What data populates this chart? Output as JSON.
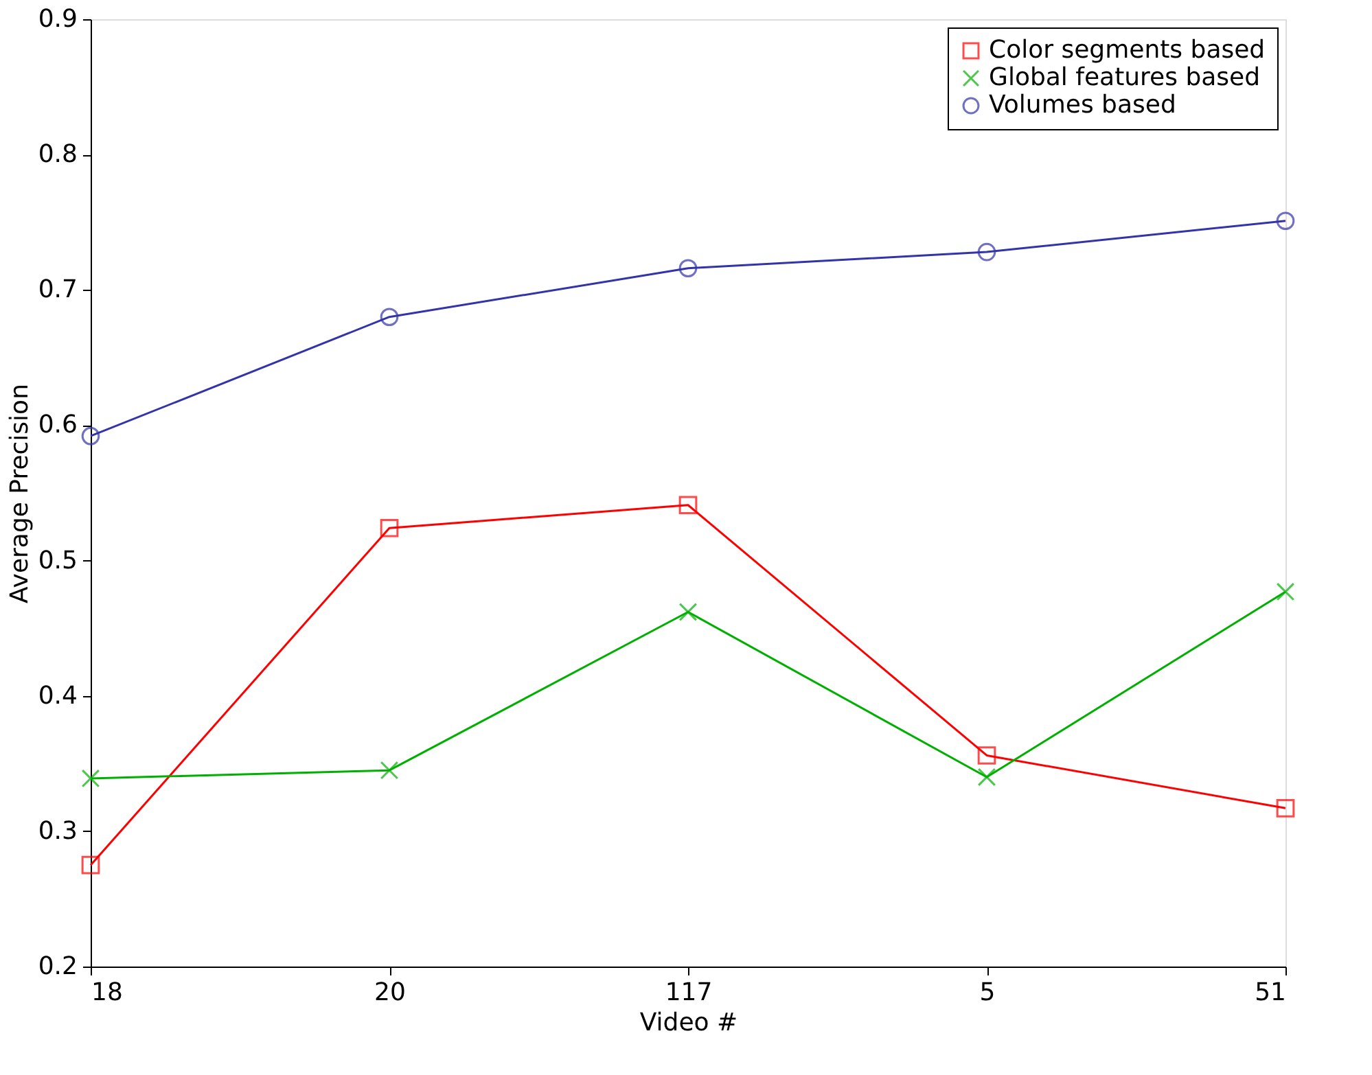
{
  "chart_data": {
    "type": "line",
    "xlabel": "Video #",
    "ylabel": "Average Precision",
    "categories": [
      "18",
      "20",
      "117",
      "5",
      "51"
    ],
    "series": [
      {
        "name": "Color segments based",
        "color": "#ff0000",
        "marker": "square",
        "values": [
          0.275,
          0.524,
          0.541,
          0.356,
          0.317
        ]
      },
      {
        "name": "Global features based",
        "color": "#00b000",
        "marker": "cross",
        "values": [
          0.339,
          0.345,
          0.462,
          0.34,
          0.477
        ]
      },
      {
        "name": "Volumes based",
        "color": "#3333aa",
        "marker": "circle",
        "values": [
          0.592,
          0.68,
          0.716,
          0.728,
          0.751
        ]
      }
    ],
    "ylim": [
      0.2,
      0.9
    ],
    "yticks": [
      0.2,
      0.3,
      0.4,
      0.5,
      0.6,
      0.7,
      0.8,
      0.9
    ],
    "grid": false,
    "legend": "top right",
    "line_style": "solid"
  }
}
